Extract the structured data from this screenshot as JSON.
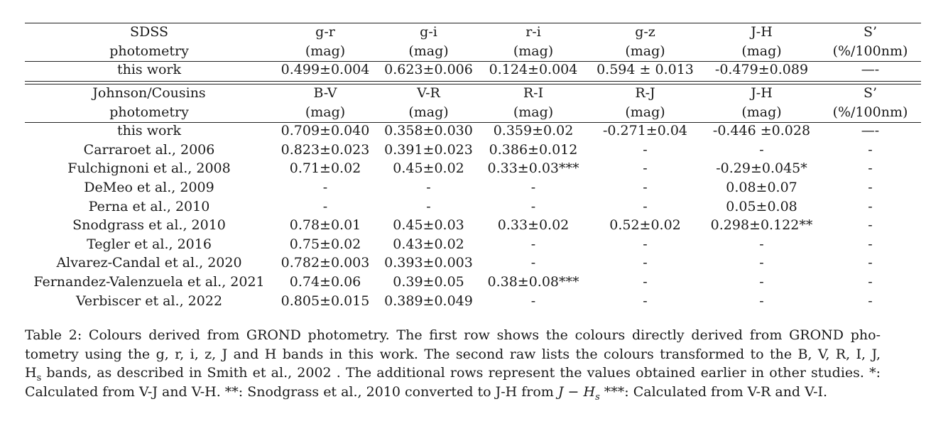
{
  "sdss": {
    "header_row1": [
      "SDSS",
      "g-r",
      "g-i",
      "r-i",
      "g-z",
      "J-H",
      "S’"
    ],
    "header_row2": [
      "photometry",
      "(mag)",
      "(mag)",
      "(mag)",
      "(mag)",
      "(mag)",
      "(%/100nm)"
    ],
    "rows": [
      [
        "this work",
        "0.499±0.004",
        "0.623±0.006",
        "0.124±0.004",
        "0.594 ± 0.013",
        "-0.479±0.089",
        "—-"
      ]
    ]
  },
  "johnson": {
    "header_row1": [
      "Johnson/Cousins",
      "B-V",
      "V-R",
      "R-I",
      "R-J",
      "J-H",
      "S’"
    ],
    "header_row2": [
      "photometry",
      "(mag)",
      "(mag)",
      "(mag)",
      "(mag)",
      "(mag)",
      "(%/100nm)"
    ],
    "rows": [
      [
        "this work",
        "0.709±0.040",
        "0.358±0.030",
        "0.359±0.02",
        "-0.271±0.04",
        "-0.446 ±0.028",
        "—-"
      ],
      [
        "Carraroet al., 2006",
        "0.823±0.023",
        "0.391±0.023",
        "0.386±0.012",
        "-",
        "-",
        "-"
      ],
      [
        "Fulchignoni et al., 2008",
        "0.71±0.02",
        "0.45±0.02",
        "0.33±0.03***",
        "-",
        "-0.29±0.045*",
        "-"
      ],
      [
        "DeMeo et al., 2009",
        "-",
        "-",
        "-",
        "-",
        "0.08±0.07",
        "-"
      ],
      [
        "Perna et al., 2010",
        "-",
        "-",
        "-",
        "-",
        "0.05±0.08",
        "-"
      ],
      [
        "Snodgrass et al., 2010",
        "0.78±0.01",
        "0.45±0.03",
        "0.33±0.02",
        "0.52±0.02",
        "0.298±0.122**",
        "-"
      ],
      [
        "Tegler et al., 2016",
        "0.75±0.02",
        "0.43±0.02",
        "-",
        "-",
        "-",
        "-"
      ],
      [
        "Alvarez-Candal et al., 2020",
        "0.782±0.003",
        "0.393±0.003",
        "-",
        "-",
        "-",
        "-"
      ],
      [
        "Fernandez-Valenzuela et al., 2021",
        "0.74±0.06",
        "0.39±0.05",
        "0.38±0.08***",
        "-",
        "-",
        "-"
      ],
      [
        "Verbiscer et al., 2022",
        "0.805±0.015",
        "0.389±0.049",
        "-",
        "-",
        "-",
        "-"
      ]
    ]
  },
  "caption": {
    "line1": "Table 2: Colours derived from GROND photometry. The first row shows the colours directly derived from GROND pho-",
    "line2": "tometry using the g, r, i, z, J and H bands in this work. The second raw lists the colours transformed to the B, V, R, I, J,",
    "line3_h": "H",
    "line3_sub": "s",
    "line3_rest": " bands, as described in Smith et al., 2002 . The additional rows represent the values obtained earlier in other studies. *:",
    "line4_a": "Calculated from V-J and V-H. **: Snodgrass et al., 2010 converted to J-H from ",
    "line4_math_j": "J",
    "line4_math_op": " − ",
    "line4_math_h": "H",
    "line4_math_sub": "s",
    "line4_b": " ***: Calculated from V-R and V-I."
  }
}
